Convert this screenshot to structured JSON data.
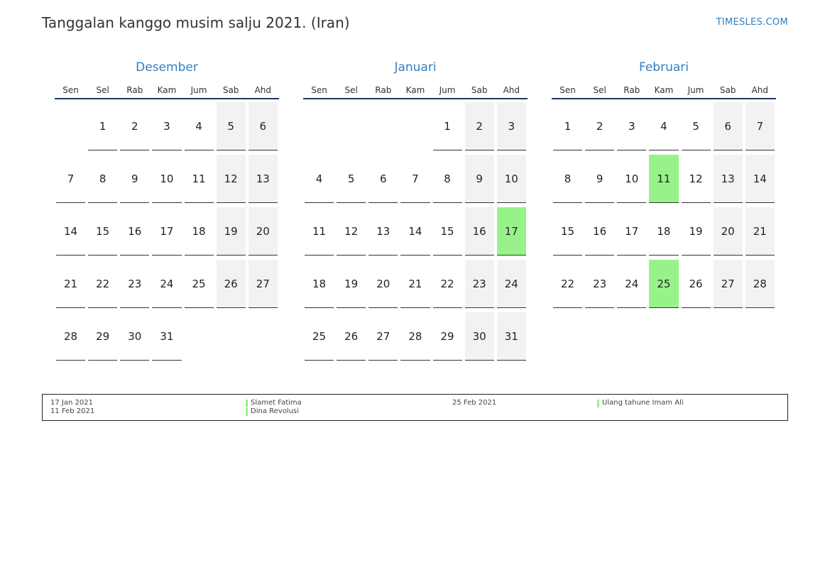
{
  "title": "Tanggalan kanggo musim salju 2021. (Iran)",
  "brand": "TIMESLES.COM",
  "colors": {
    "accent": "#2f7fc1",
    "holiday": "#98f28a",
    "weekend": "#f2f2f2"
  },
  "weekdays": [
    "Sen",
    "Sel",
    "Rab",
    "Kam",
    "Jum",
    "Sab",
    "Ahd"
  ],
  "months": [
    {
      "name": "Desember",
      "start_offset": 1,
      "days": 31,
      "holidays": []
    },
    {
      "name": "Januari",
      "start_offset": 4,
      "days": 31,
      "holidays": [
        17
      ]
    },
    {
      "name": "Februari",
      "start_offset": 0,
      "days": 28,
      "holidays": [
        11,
        25
      ]
    }
  ],
  "legend": {
    "left_dates": [
      "17 Jan 2021",
      "11 Feb 2021"
    ],
    "left_names": [
      "Slamet Fatima",
      "Dina Revolusi"
    ],
    "right_dates": [
      "25 Feb 2021"
    ],
    "right_names": [
      "Ulang tahune Imam Ali"
    ]
  }
}
